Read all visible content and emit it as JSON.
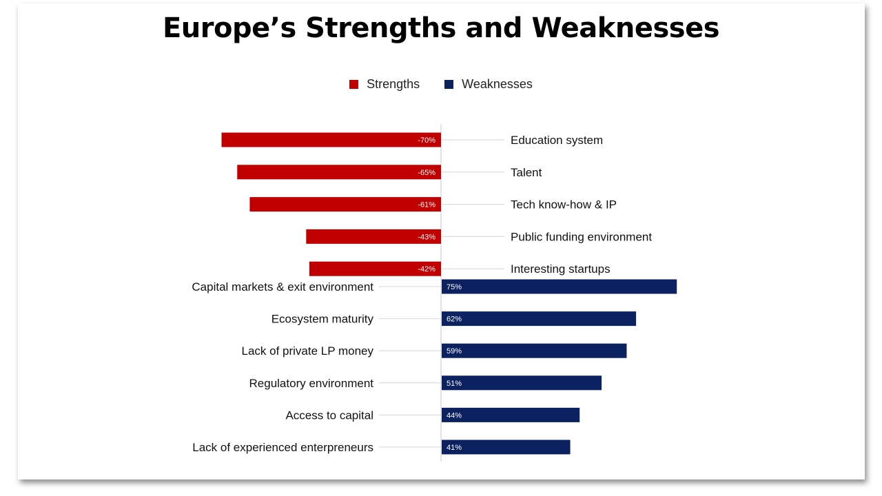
{
  "title": "Europe’s Strengths and Weaknesses",
  "legend": {
    "strengths_label": "Strengths",
    "weaknesses_label": "Weaknesses"
  },
  "colors": {
    "strengths": "#C00000",
    "weaknesses": "#0C2260"
  },
  "chart_data": {
    "type": "bar",
    "orientation": "horizontal",
    "title": "Europe’s Strengths and Weaknesses",
    "xlim": [
      -100,
      100
    ],
    "grid": false,
    "legend_position": "top-center",
    "series": [
      {
        "name": "Strengths",
        "color": "#C00000",
        "categories": [
          "Education system",
          "Talent",
          "Tech know-how & IP",
          "Public funding environment",
          "Interesting startups"
        ],
        "values": [
          -70,
          -65,
          -61,
          -43,
          -42
        ],
        "data_labels": [
          "-70%",
          "-65%",
          "-61%",
          "-43%",
          "-42%"
        ]
      },
      {
        "name": "Weaknesses",
        "color": "#0C2260",
        "categories": [
          "Capital markets & exit environment",
          "Ecosystem maturity",
          "Lack of private LP money",
          "Regulatory environment",
          "Access to capital",
          "Lack of experienced enterpreneurs"
        ],
        "values": [
          75,
          62,
          59,
          51,
          44,
          41
        ],
        "data_labels": [
          "75%",
          "62%",
          "59%",
          "51%",
          "44%",
          "41%"
        ]
      }
    ]
  }
}
